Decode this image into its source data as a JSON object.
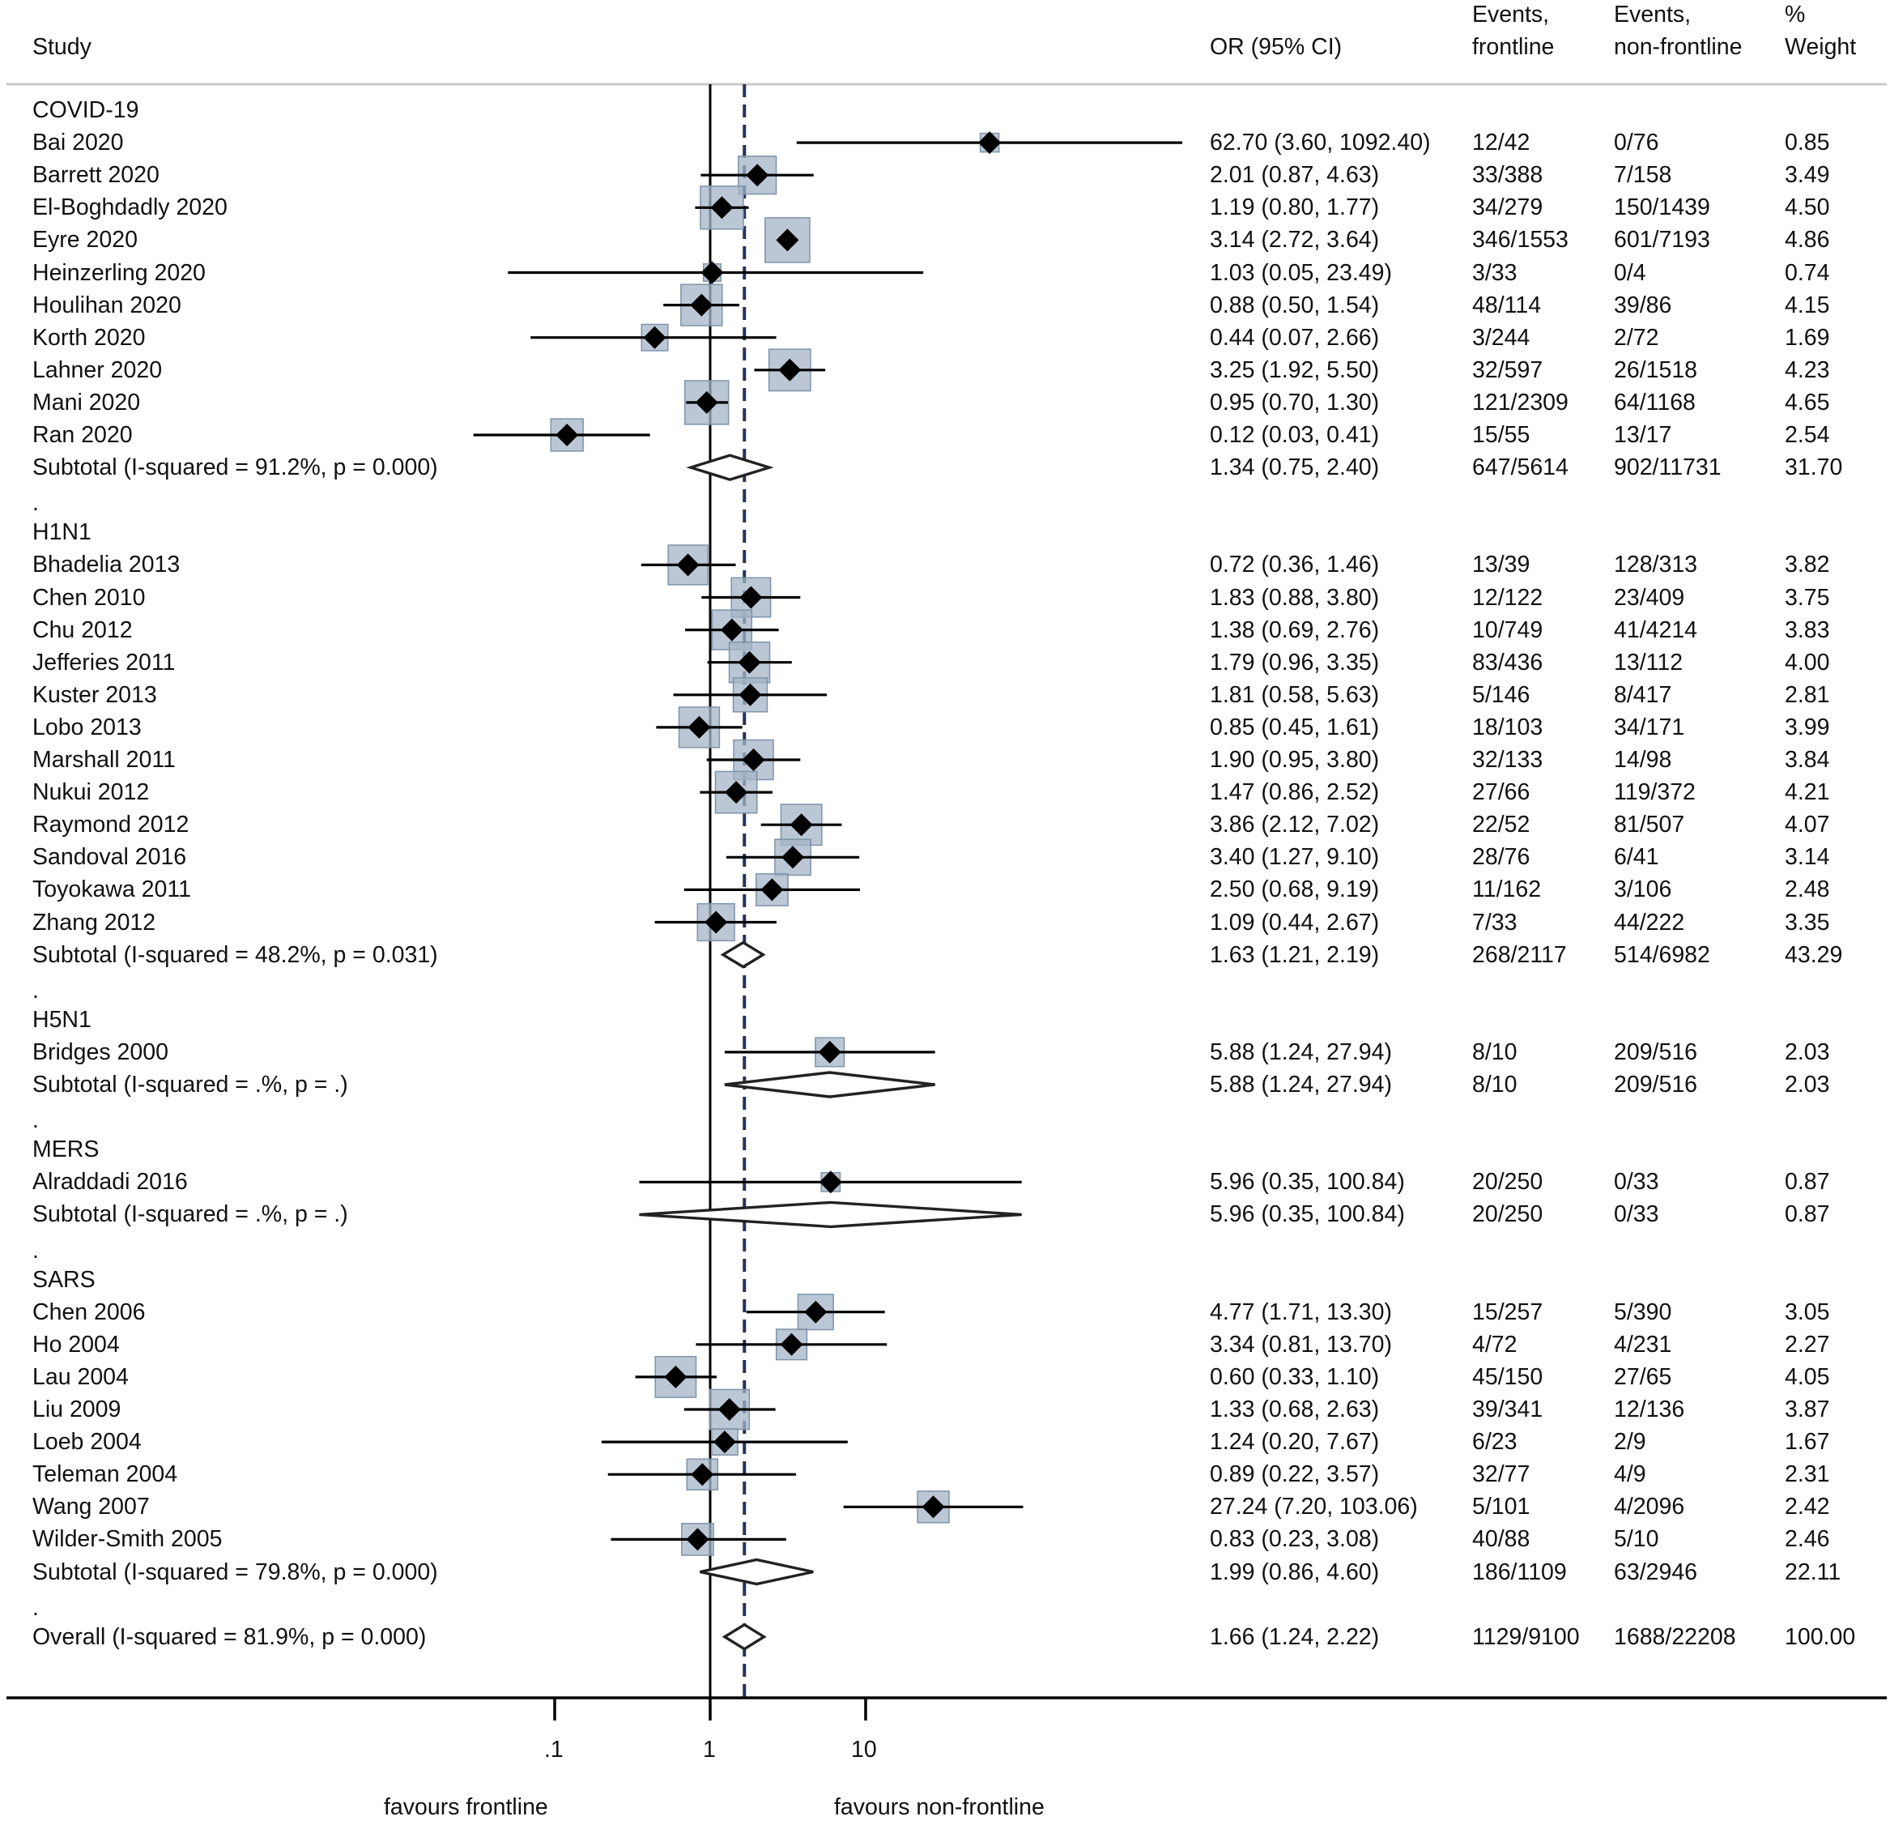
{
  "headers": {
    "study": "Study",
    "or": "OR (95% CI)",
    "events_front_1": "Events,",
    "events_front_2": "frontline",
    "events_non_1": "Events,",
    "events_non_2": "non-frontline",
    "weight_1": "%",
    "weight_2": "Weight"
  },
  "axis": {
    "ticks": [
      ".1",
      "1",
      "10"
    ],
    "left_label": "favours frontline",
    "right_label": "favours non-frontline"
  },
  "chart_data": {
    "type": "forest",
    "scale": "log",
    "null_line": 1,
    "overall_line": 1.66,
    "rows": [
      {
        "kind": "group",
        "label": "COVID-19"
      },
      {
        "kind": "study",
        "label": "Bai 2020",
        "or": 62.7,
        "lo": 3.6,
        "hi": 1092.4,
        "ci_text": "62.70 (3.60, 1092.40)",
        "ev_front": "12/42",
        "ev_non": "0/76",
        "weight": "0.85",
        "w": 0.85
      },
      {
        "kind": "study",
        "label": "Barrett 2020",
        "or": 2.01,
        "lo": 0.87,
        "hi": 4.63,
        "ci_text": "2.01 (0.87, 4.63)",
        "ev_front": "33/388",
        "ev_non": "7/158",
        "weight": "3.49",
        "w": 3.49
      },
      {
        "kind": "study",
        "label": "El-Boghdadly 2020",
        "or": 1.19,
        "lo": 0.8,
        "hi": 1.77,
        "ci_text": "1.19 (0.80, 1.77)",
        "ev_front": "34/279",
        "ev_non": "150/1439",
        "weight": "4.50",
        "w": 4.5
      },
      {
        "kind": "study",
        "label": "Eyre 2020",
        "or": 3.14,
        "lo": 2.72,
        "hi": 3.64,
        "ci_text": "3.14 (2.72, 3.64)",
        "ev_front": "346/1553",
        "ev_non": "601/7193",
        "weight": "4.86",
        "w": 4.86
      },
      {
        "kind": "study",
        "label": "Heinzerling 2020",
        "or": 1.03,
        "lo": 0.05,
        "hi": 23.49,
        "ci_text": "1.03 (0.05, 23.49)",
        "ev_front": "3/33",
        "ev_non": "0/4",
        "weight": "0.74",
        "w": 0.74
      },
      {
        "kind": "study",
        "label": "Houlihan 2020",
        "or": 0.88,
        "lo": 0.5,
        "hi": 1.54,
        "ci_text": "0.88 (0.50, 1.54)",
        "ev_front": "48/114",
        "ev_non": "39/86",
        "weight": "4.15",
        "w": 4.15
      },
      {
        "kind": "study",
        "label": "Korth 2020",
        "or": 0.44,
        "lo": 0.07,
        "hi": 2.66,
        "ci_text": "0.44 (0.07, 2.66)",
        "ev_front": "3/244",
        "ev_non": "2/72",
        "weight": "1.69",
        "w": 1.69
      },
      {
        "kind": "study",
        "label": "Lahner 2020",
        "or": 3.25,
        "lo": 1.92,
        "hi": 5.5,
        "ci_text": "3.25 (1.92, 5.50)",
        "ev_front": "32/597",
        "ev_non": "26/1518",
        "weight": "4.23",
        "w": 4.23
      },
      {
        "kind": "study",
        "label": "Mani 2020",
        "or": 0.95,
        "lo": 0.7,
        "hi": 1.3,
        "ci_text": "0.95 (0.70, 1.30)",
        "ev_front": "121/2309",
        "ev_non": "64/1168",
        "weight": "4.65",
        "w": 4.65
      },
      {
        "kind": "study",
        "label": "Ran 2020",
        "or": 0.12,
        "lo": 0.03,
        "hi": 0.41,
        "ci_text": "0.12 (0.03, 0.41)",
        "ev_front": "15/55",
        "ev_non": "13/17",
        "weight": "2.54",
        "w": 2.54
      },
      {
        "kind": "subtotal",
        "label": "Subtotal  (I-squared = 91.2%, p = 0.000)",
        "or": 1.34,
        "lo": 0.75,
        "hi": 2.4,
        "ci_text": "1.34 (0.75, 2.40)",
        "ev_front": "647/5614",
        "ev_non": "902/11731",
        "weight": "31.70"
      },
      {
        "kind": "dot",
        "label": "."
      },
      {
        "kind": "group",
        "label": "H1N1"
      },
      {
        "kind": "study",
        "label": "Bhadelia 2013",
        "or": 0.72,
        "lo": 0.36,
        "hi": 1.46,
        "ci_text": "0.72 (0.36, 1.46)",
        "ev_front": "13/39",
        "ev_non": "128/313",
        "weight": "3.82",
        "w": 3.82
      },
      {
        "kind": "study",
        "label": "Chen 2010",
        "or": 1.83,
        "lo": 0.88,
        "hi": 3.8,
        "ci_text": "1.83 (0.88, 3.80)",
        "ev_front": "12/122",
        "ev_non": "23/409",
        "weight": "3.75",
        "w": 3.75
      },
      {
        "kind": "study",
        "label": "Chu 2012",
        "or": 1.38,
        "lo": 0.69,
        "hi": 2.76,
        "ci_text": "1.38 (0.69, 2.76)",
        "ev_front": "10/749",
        "ev_non": "41/4214",
        "weight": "3.83",
        "w": 3.83
      },
      {
        "kind": "study",
        "label": "Jefferies 2011",
        "or": 1.79,
        "lo": 0.96,
        "hi": 3.35,
        "ci_text": "1.79 (0.96, 3.35)",
        "ev_front": "83/436",
        "ev_non": "13/112",
        "weight": "4.00",
        "w": 4.0
      },
      {
        "kind": "study",
        "label": "Kuster 2013",
        "or": 1.81,
        "lo": 0.58,
        "hi": 5.63,
        "ci_text": "1.81 (0.58, 5.63)",
        "ev_front": "5/146",
        "ev_non": "8/417",
        "weight": "2.81",
        "w": 2.81
      },
      {
        "kind": "study",
        "label": "Lobo 2013",
        "or": 0.85,
        "lo": 0.45,
        "hi": 1.61,
        "ci_text": "0.85 (0.45, 1.61)",
        "ev_front": "18/103",
        "ev_non": "34/171",
        "weight": "3.99",
        "w": 3.99
      },
      {
        "kind": "study",
        "label": "Marshall 2011",
        "or": 1.9,
        "lo": 0.95,
        "hi": 3.8,
        "ci_text": "1.90 (0.95, 3.80)",
        "ev_front": "32/133",
        "ev_non": "14/98",
        "weight": "3.84",
        "w": 3.84
      },
      {
        "kind": "study",
        "label": "Nukui 2012",
        "or": 1.47,
        "lo": 0.86,
        "hi": 2.52,
        "ci_text": "1.47 (0.86, 2.52)",
        "ev_front": "27/66",
        "ev_non": "119/372",
        "weight": "4.21",
        "w": 4.21
      },
      {
        "kind": "study",
        "label": "Raymond 2012",
        "or": 3.86,
        "lo": 2.12,
        "hi": 7.02,
        "ci_text": "3.86 (2.12, 7.02)",
        "ev_front": "22/52",
        "ev_non": "81/507",
        "weight": "4.07",
        "w": 4.07
      },
      {
        "kind": "study",
        "label": "Sandoval 2016",
        "or": 3.4,
        "lo": 1.27,
        "hi": 9.1,
        "ci_text": "3.40 (1.27, 9.10)",
        "ev_front": "28/76",
        "ev_non": "6/41",
        "weight": "3.14",
        "w": 3.14
      },
      {
        "kind": "study",
        "label": "Toyokawa 2011",
        "or": 2.5,
        "lo": 0.68,
        "hi": 9.19,
        "ci_text": "2.50 (0.68, 9.19)",
        "ev_front": "11/162",
        "ev_non": "3/106",
        "weight": "2.48",
        "w": 2.48
      },
      {
        "kind": "study",
        "label": "Zhang 2012",
        "or": 1.09,
        "lo": 0.44,
        "hi": 2.67,
        "ci_text": "1.09 (0.44, 2.67)",
        "ev_front": "7/33",
        "ev_non": "44/222",
        "weight": "3.35",
        "w": 3.35
      },
      {
        "kind": "subtotal",
        "label": "Subtotal  (I-squared = 48.2%, p = 0.031)",
        "or": 1.63,
        "lo": 1.21,
        "hi": 2.19,
        "ci_text": "1.63 (1.21, 2.19)",
        "ev_front": "268/2117",
        "ev_non": "514/6982",
        "weight": "43.29"
      },
      {
        "kind": "dot",
        "label": "."
      },
      {
        "kind": "group",
        "label": "H5N1"
      },
      {
        "kind": "study",
        "label": "Bridges 2000",
        "or": 5.88,
        "lo": 1.24,
        "hi": 27.94,
        "ci_text": "5.88 (1.24, 27.94)",
        "ev_front": "8/10",
        "ev_non": "209/516",
        "weight": "2.03",
        "w": 2.03
      },
      {
        "kind": "subtotal",
        "label": "Subtotal  (I-squared = .%, p = .)",
        "or": 5.88,
        "lo": 1.24,
        "hi": 27.94,
        "ci_text": "5.88 (1.24, 27.94)",
        "ev_front": "8/10",
        "ev_non": "209/516",
        "weight": "2.03"
      },
      {
        "kind": "dot",
        "label": "."
      },
      {
        "kind": "group",
        "label": "MERS"
      },
      {
        "kind": "study",
        "label": "Alraddadi 2016",
        "or": 5.96,
        "lo": 0.35,
        "hi": 100.84,
        "ci_text": "5.96 (0.35, 100.84)",
        "ev_front": "20/250",
        "ev_non": "0/33",
        "weight": "0.87",
        "w": 0.87
      },
      {
        "kind": "subtotal",
        "label": "Subtotal  (I-squared = .%, p = .)",
        "or": 5.96,
        "lo": 0.35,
        "hi": 100.84,
        "ci_text": "5.96 (0.35, 100.84)",
        "ev_front": "20/250",
        "ev_non": "0/33",
        "weight": "0.87"
      },
      {
        "kind": "dot",
        "label": "."
      },
      {
        "kind": "group",
        "label": "SARS"
      },
      {
        "kind": "study",
        "label": "Chen 2006",
        "or": 4.77,
        "lo": 1.71,
        "hi": 13.3,
        "ci_text": "4.77 (1.71, 13.30)",
        "ev_front": "15/257",
        "ev_non": "5/390",
        "weight": "3.05",
        "w": 3.05
      },
      {
        "kind": "study",
        "label": "Ho 2004",
        "or": 3.34,
        "lo": 0.81,
        "hi": 13.7,
        "ci_text": "3.34 (0.81, 13.70)",
        "ev_front": "4/72",
        "ev_non": "4/231",
        "weight": "2.27",
        "w": 2.27
      },
      {
        "kind": "study",
        "label": "Lau 2004",
        "or": 0.6,
        "lo": 0.33,
        "hi": 1.1,
        "ci_text": "0.60 (0.33, 1.10)",
        "ev_front": "45/150",
        "ev_non": "27/65",
        "weight": "4.05",
        "w": 4.05
      },
      {
        "kind": "study",
        "label": "Liu 2009",
        "or": 1.33,
        "lo": 0.68,
        "hi": 2.63,
        "ci_text": "1.33 (0.68, 2.63)",
        "ev_front": "39/341",
        "ev_non": "12/136",
        "weight": "3.87",
        "w": 3.87
      },
      {
        "kind": "study",
        "label": "Loeb 2004",
        "or": 1.24,
        "lo": 0.2,
        "hi": 7.67,
        "ci_text": "1.24 (0.20, 7.67)",
        "ev_front": "6/23",
        "ev_non": "2/9",
        "weight": "1.67",
        "w": 1.67
      },
      {
        "kind": "study",
        "label": "Teleman 2004",
        "or": 0.89,
        "lo": 0.22,
        "hi": 3.57,
        "ci_text": "0.89 (0.22, 3.57)",
        "ev_front": "32/77",
        "ev_non": "4/9",
        "weight": "2.31",
        "w": 2.31
      },
      {
        "kind": "study",
        "label": "Wang 2007",
        "or": 27.24,
        "lo": 7.2,
        "hi": 103.06,
        "ci_text": "27.24 (7.20, 103.06)",
        "ev_front": "5/101",
        "ev_non": "4/2096",
        "weight": "2.42",
        "w": 2.42
      },
      {
        "kind": "study",
        "label": "Wilder-Smith 2005",
        "or": 0.83,
        "lo": 0.23,
        "hi": 3.08,
        "ci_text": "0.83 (0.23, 3.08)",
        "ev_front": "40/88",
        "ev_non": "5/10",
        "weight": "2.46",
        "w": 2.46
      },
      {
        "kind": "subtotal",
        "label": "Subtotal  (I-squared = 79.8%, p = 0.000)",
        "or": 1.99,
        "lo": 0.86,
        "hi": 4.6,
        "ci_text": "1.99 (0.86, 4.60)",
        "ev_front": "186/1109",
        "ev_non": "63/2946",
        "weight": "22.11"
      },
      {
        "kind": "dot",
        "label": "."
      },
      {
        "kind": "subtotal",
        "label": "Overall  (I-squared = 81.9%, p = 0.000)",
        "or": 1.66,
        "lo": 1.24,
        "hi": 2.22,
        "ci_text": "1.66 (1.24, 2.22)",
        "ev_front": "1129/9100",
        "ev_non": "1688/22208",
        "weight": "100.00"
      }
    ]
  },
  "colors": {
    "box_fill": "#a4b4c6",
    "box_stroke": "#7f93aa",
    "overall_line": "#22335a",
    "ink": "#000000",
    "rule": "#c8c8c8"
  }
}
